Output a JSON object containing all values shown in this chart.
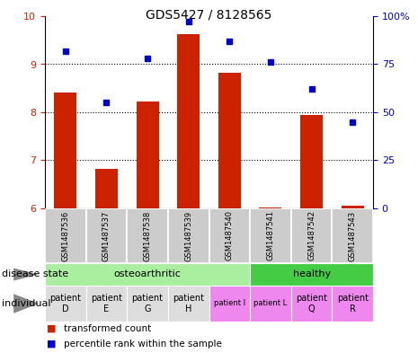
{
  "title": "GDS5427 / 8128565",
  "samples": [
    "GSM1487536",
    "GSM1487537",
    "GSM1487538",
    "GSM1487539",
    "GSM1487540",
    "GSM1487541",
    "GSM1487542",
    "GSM1487543"
  ],
  "bar_values": [
    8.42,
    6.82,
    8.22,
    9.62,
    8.82,
    6.02,
    7.95,
    6.05
  ],
  "dot_values": [
    82,
    55,
    78,
    97,
    87,
    76,
    62,
    45
  ],
  "bar_color": "#cc2200",
  "dot_color": "#0000cc",
  "ylim_left": [
    6,
    10
  ],
  "ylim_right": [
    0,
    100
  ],
  "yticks_left": [
    6,
    7,
    8,
    9,
    10
  ],
  "yticks_right": [
    0,
    25,
    50,
    75,
    100
  ],
  "ytick_labels_right": [
    "0",
    "25",
    "50",
    "75",
    "100%"
  ],
  "bar_bottom": 6.0,
  "disease_state_groups": [
    {
      "label": "osteoarthritic",
      "start": 0,
      "end": 4,
      "color": "#aaeea0"
    },
    {
      "label": "healthy",
      "start": 5,
      "end": 7,
      "color": "#44cc44"
    }
  ],
  "individuals": [
    {
      "label": "patient\nD",
      "idx": 0,
      "color": "#dddddd",
      "font_size": 7
    },
    {
      "label": "patient\nE",
      "idx": 1,
      "color": "#dddddd",
      "font_size": 7
    },
    {
      "label": "patient\nG",
      "idx": 2,
      "color": "#dddddd",
      "font_size": 7
    },
    {
      "label": "patient\nH",
      "idx": 3,
      "color": "#dddddd",
      "font_size": 7
    },
    {
      "label": "patient I",
      "idx": 4,
      "color": "#ee88ee",
      "font_size": 6
    },
    {
      "label": "patient L",
      "idx": 5,
      "color": "#ee88ee",
      "font_size": 6
    },
    {
      "label": "patient\nQ",
      "idx": 6,
      "color": "#ee88ee",
      "font_size": 7
    },
    {
      "label": "patient\nR",
      "idx": 7,
      "color": "#ee88ee",
      "font_size": 7
    }
  ],
  "legend_items": [
    {
      "label": "transformed count",
      "color": "#cc2200"
    },
    {
      "label": "percentile rank within the sample",
      "color": "#0000cc"
    }
  ],
  "sample_box_color": "#cccccc",
  "label_disease_state": "disease state",
  "label_individual": "individual"
}
